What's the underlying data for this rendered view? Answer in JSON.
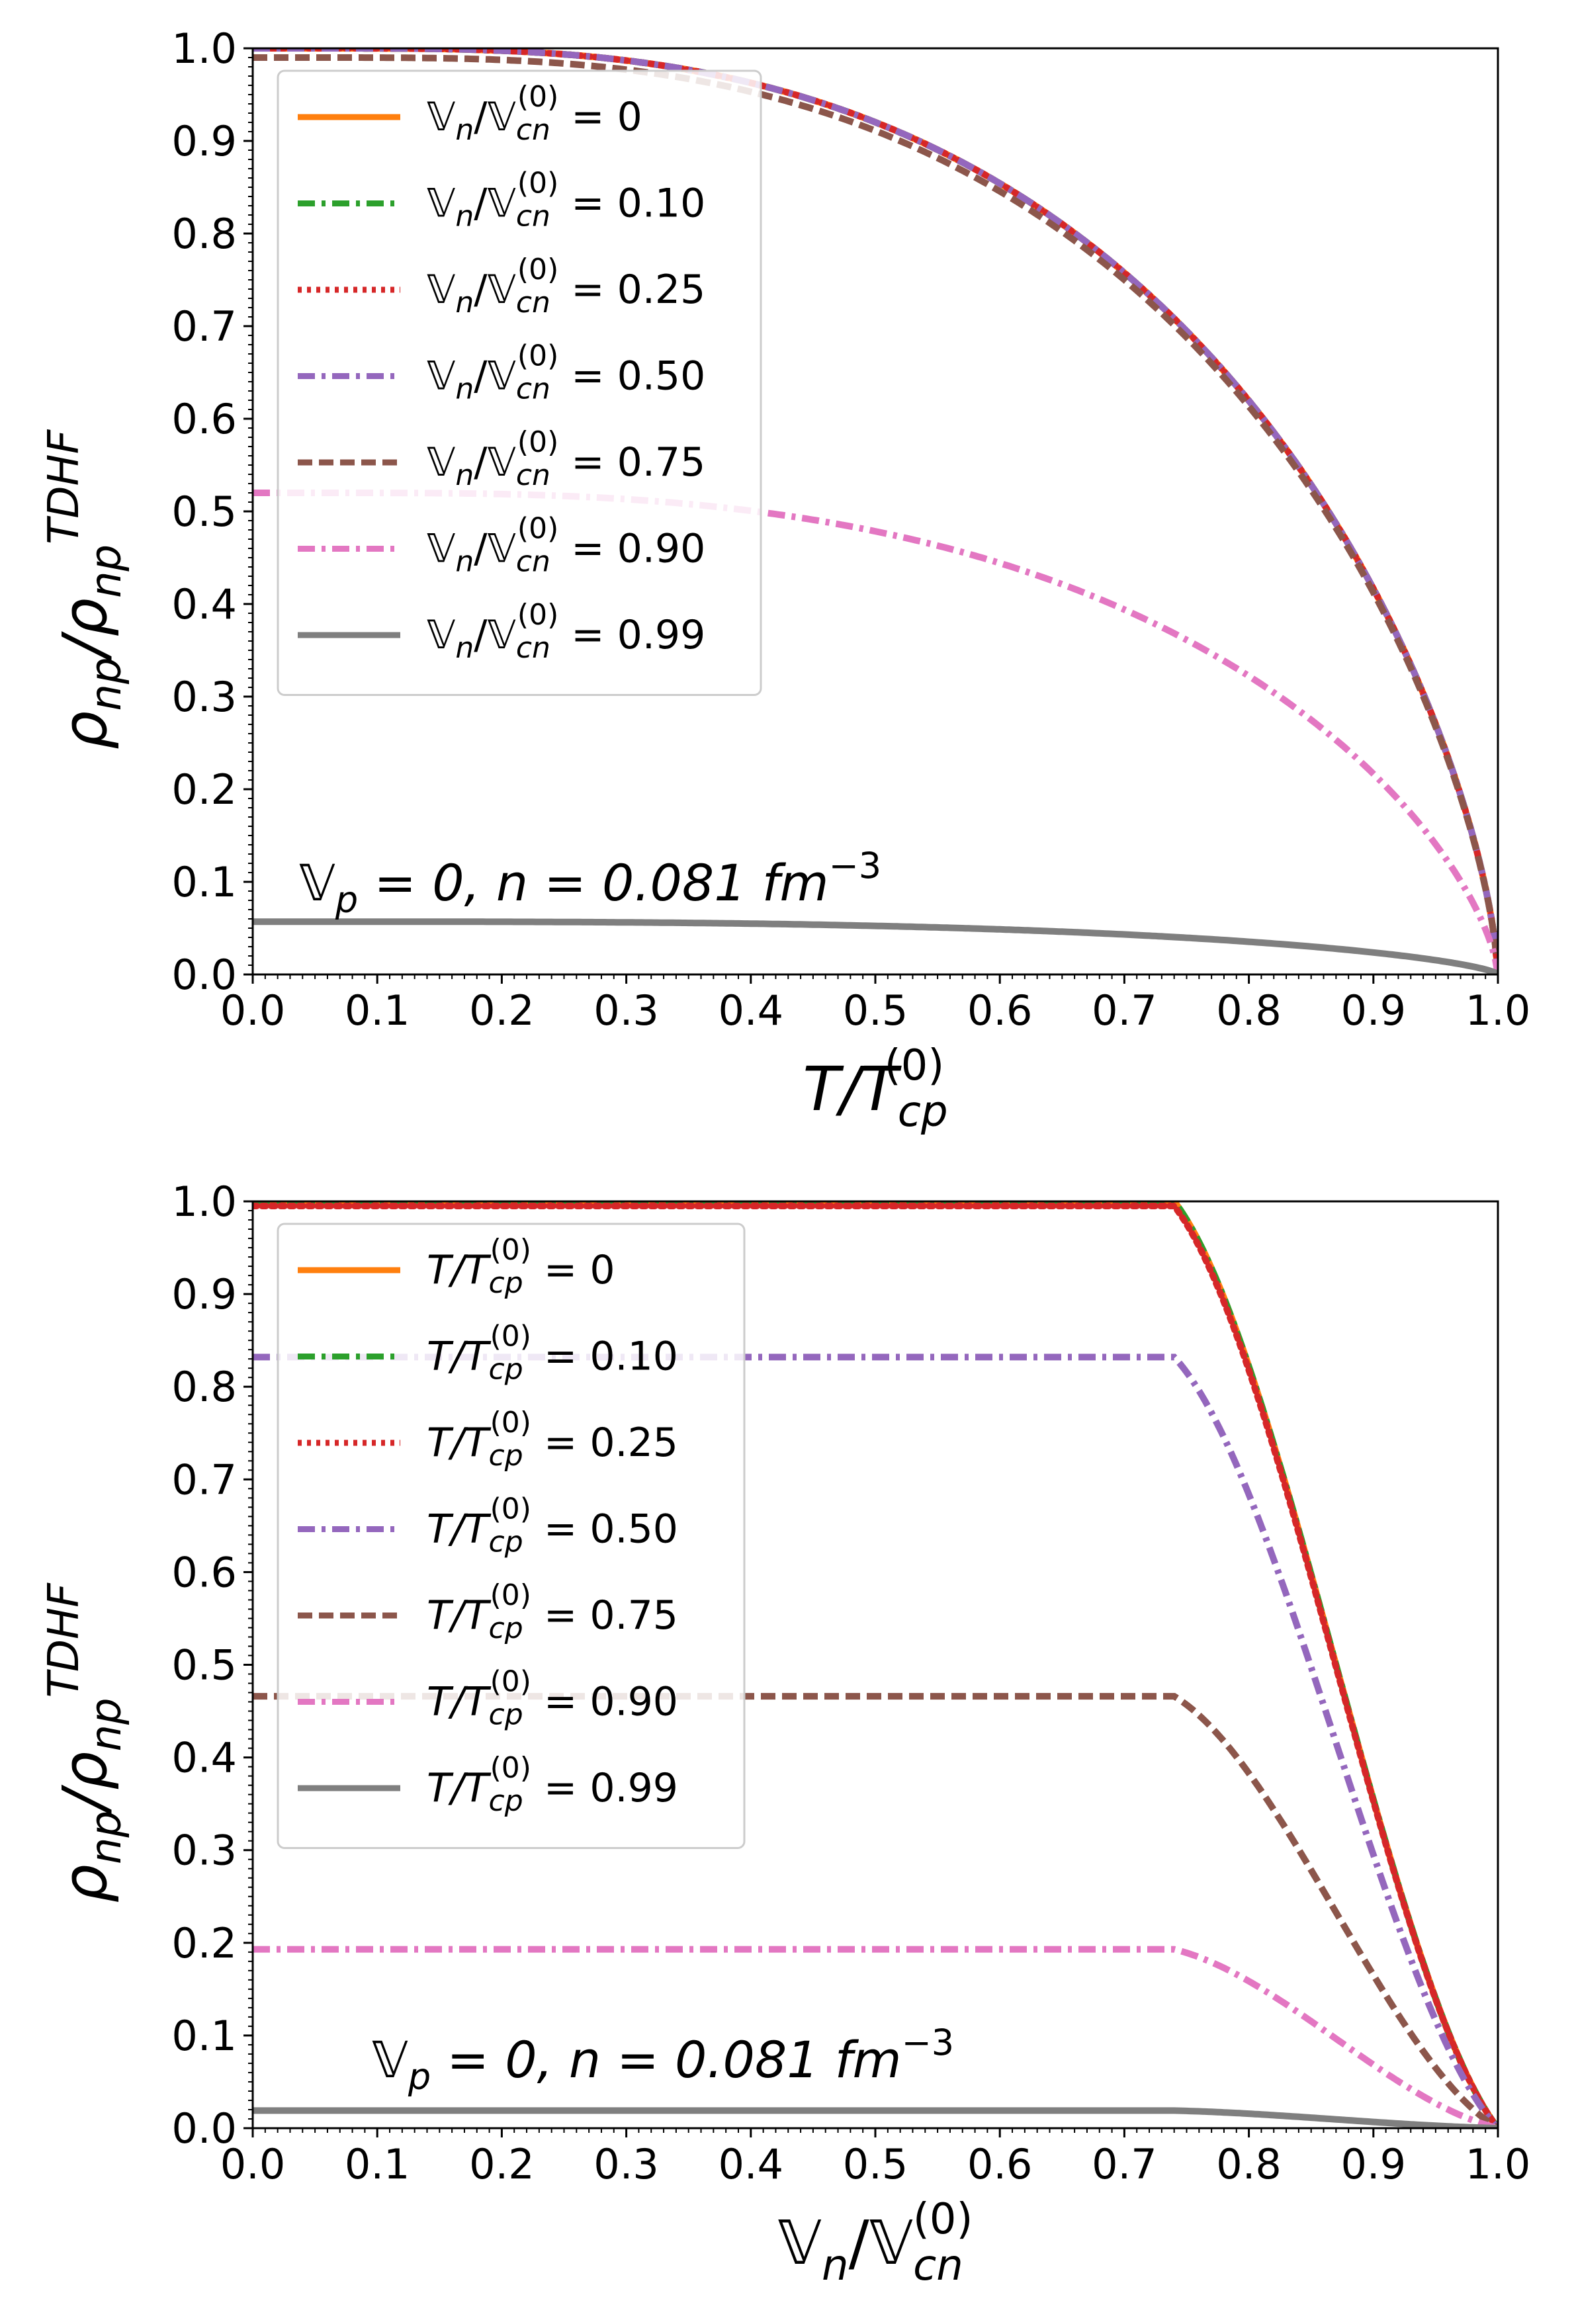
{
  "chart_data": [
    {
      "type": "line",
      "title": "",
      "xlabel": "T/T_cp^(0)",
      "ylabel": "ρ_np/ρ_np^TDHF",
      "xlim": [
        0,
        1
      ],
      "ylim": [
        0,
        1
      ],
      "x_ticks": [
        "0.0",
        "0.1",
        "0.2",
        "0.3",
        "0.4",
        "0.5",
        "0.6",
        "0.7",
        "0.8",
        "0.9",
        "1.0"
      ],
      "y_ticks": [
        "0.0",
        "0.1",
        "0.2",
        "0.3",
        "0.4",
        "0.5",
        "0.6",
        "0.7",
        "0.8",
        "0.9",
        "1.0"
      ],
      "xlabel_text": {
        "main": "T/T",
        "sub": "cp",
        "sup": "(0)"
      },
      "ylabel_text": {
        "main": "ρ",
        "sub1": "np",
        "mid": "/ρ",
        "sub2": "np",
        "sup": "TDHF"
      },
      "annotation": {
        "v": "𝕍",
        "vsub": "p",
        "rest": " = 0, n = 0.081 fm",
        "sup": "−3"
      },
      "legend": {
        "position": "upper-left",
        "prefix": "𝕍",
        "prefix_sub": "n",
        "mid": "/𝕍",
        "mid_sub": "cn",
        "mid_sup": "(0)"
      },
      "series": [
        {
          "name": "0",
          "label_value": "= 0",
          "color": "#ff7f0e",
          "dash": "solid",
          "ymax": 1.0,
          "curve": "temp"
        },
        {
          "name": "0.10",
          "label_value": "= 0.10",
          "color": "#2ca02c",
          "dash": "dashdot",
          "ymax": 1.0,
          "curve": "temp"
        },
        {
          "name": "0.25",
          "label_value": "= 0.25",
          "color": "#d62728",
          "dash": "dotted",
          "ymax": 1.0,
          "curve": "temp"
        },
        {
          "name": "0.50",
          "label_value": "= 0.50",
          "color": "#9467bd",
          "dash": "dashdot",
          "ymax": 1.0,
          "curve": "temp"
        },
        {
          "name": "0.75",
          "label_value": "= 0.75",
          "color": "#8c564b",
          "dash": "dashed",
          "ymax": 0.99,
          "curve": "temp"
        },
        {
          "name": "0.90",
          "label_value": "= 0.90",
          "color": "#e377c2",
          "dash": "dashdot",
          "ymax": 0.52,
          "curve": "temp"
        },
        {
          "name": "0.99",
          "label_value": "= 0.99",
          "color": "#7f7f7f",
          "dash": "solid",
          "ymax": 0.057,
          "curve": "temp"
        }
      ]
    },
    {
      "type": "line",
      "title": "",
      "xlabel": "V_n/V_cn^(0)",
      "ylabel": "ρ_np/ρ_np^TDHF",
      "xlim": [
        0,
        1
      ],
      "ylim": [
        0,
        1
      ],
      "x_ticks": [
        "0.0",
        "0.1",
        "0.2",
        "0.3",
        "0.4",
        "0.5",
        "0.6",
        "0.7",
        "0.8",
        "0.9",
        "1.0"
      ],
      "y_ticks": [
        "0.0",
        "0.1",
        "0.2",
        "0.3",
        "0.4",
        "0.5",
        "0.6",
        "0.7",
        "0.8",
        "0.9",
        "1.0"
      ],
      "xlabel_text": {
        "main": "𝕍",
        "sub": "n",
        "mid": "/𝕍",
        "sub2": "cn",
        "sup": "(0)"
      },
      "ylabel_text": {
        "main": "ρ",
        "sub1": "np",
        "mid": "/ρ",
        "sub2": "np",
        "sup": "TDHF"
      },
      "annotation": {
        "v": "𝕍",
        "vsub": "p",
        "rest": " = 0, n = 0.081 fm",
        "sup": "−3"
      },
      "legend": {
        "position": "upper-left",
        "prefix": "T/T",
        "prefix_sub": "cp",
        "mid": "",
        "mid_sub": "",
        "mid_sup": "(0)"
      },
      "series": [
        {
          "name": "0",
          "label_value": "= 0",
          "color": "#ff7f0e",
          "dash": "solid",
          "ymax": 1.0,
          "curve": "vel"
        },
        {
          "name": "0.10",
          "label_value": "= 0.10",
          "color": "#2ca02c",
          "dash": "dashdot",
          "ymax": 1.0,
          "curve": "vel"
        },
        {
          "name": "0.25",
          "label_value": "= 0.25",
          "color": "#d62728",
          "dash": "dotted",
          "ymax": 0.995,
          "curve": "vel"
        },
        {
          "name": "0.50",
          "label_value": "= 0.50",
          "color": "#9467bd",
          "dash": "dashdot",
          "ymax": 0.832,
          "curve": "vel"
        },
        {
          "name": "0.75",
          "label_value": "= 0.75",
          "color": "#8c564b",
          "dash": "dashed",
          "ymax": 0.466,
          "curve": "vel"
        },
        {
          "name": "0.90",
          "label_value": "= 0.90",
          "color": "#e377c2",
          "dash": "dashdot",
          "ymax": 0.193,
          "curve": "vel"
        },
        {
          "name": "0.99",
          "label_value": "= 0.99",
          "color": "#7f7f7f",
          "dash": "solid",
          "ymax": 0.019,
          "curve": "vel"
        }
      ]
    }
  ]
}
